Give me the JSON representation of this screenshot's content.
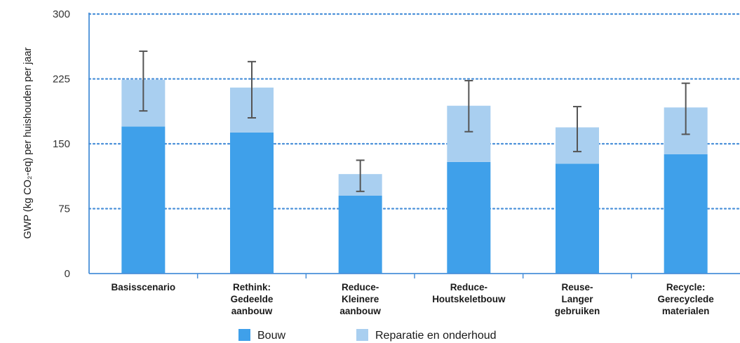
{
  "chart_data": {
    "type": "bar",
    "stacked": true,
    "categories": [
      [
        "Basisscenario"
      ],
      [
        "Rethink:",
        "Gedeelde",
        "aanbouw"
      ],
      [
        "Reduce-",
        "Kleinere",
        "aanbouw"
      ],
      [
        "Reduce-",
        "Houtskeletbouw"
      ],
      [
        "Reuse-",
        "Langer",
        "gebruiken"
      ],
      [
        "Recycle:",
        "Gerecyclede",
        "materialen"
      ]
    ],
    "series": [
      {
        "name": "Bouw",
        "color": "#3fa0ea",
        "values": [
          170,
          163,
          90,
          129,
          127,
          138
        ]
      },
      {
        "name": "Reparatie en onderhoud",
        "color": "#a9cff0",
        "values": [
          54,
          52,
          25,
          65,
          42,
          54
        ]
      }
    ],
    "error_bars": [
      {
        "low": 188,
        "high": 257
      },
      {
        "low": 180,
        "high": 245
      },
      {
        "low": 95,
        "high": 131
      },
      {
        "low": 164,
        "high": 223
      },
      {
        "low": 141,
        "high": 193
      },
      {
        "low": 161,
        "high": 220
      }
    ],
    "yticks": [
      "0",
      "75",
      "150",
      "225",
      "300"
    ],
    "ylim": [
      0,
      300
    ],
    "ylabel": "GWP (kg CO₂-eq) per huishouden per jaar",
    "grid": "dotted horizontal",
    "legend_position": "bottom",
    "axis_color": "#4a90d9",
    "errorbar_color": "#555555"
  }
}
